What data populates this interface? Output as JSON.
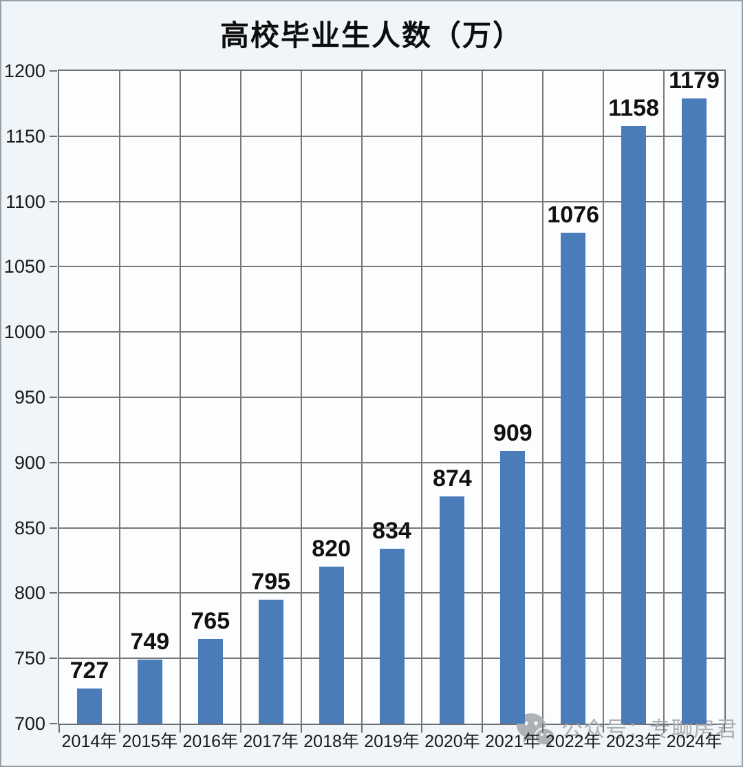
{
  "title": "高校毕业生人数（万）",
  "watermark": {
    "icon": "wechat-icon",
    "text": "公众号：专聊房君"
  },
  "chart_data": {
    "type": "bar",
    "title": "高校毕业生人数（万）",
    "categories": [
      "2014年",
      "2015年",
      "2016年",
      "2017年",
      "2018年",
      "2019年",
      "2020年",
      "2021年",
      "2022年",
      "2023年",
      "2024年"
    ],
    "values": [
      727,
      749,
      765,
      795,
      820,
      834,
      874,
      909,
      1076,
      1158,
      1179
    ],
    "xlabel": "",
    "ylabel": "",
    "ylim": [
      700,
      1200
    ],
    "ytick_step": 50,
    "bar_color": "#4a7cba",
    "grid": true,
    "legend": false,
    "data_labels": true
  }
}
